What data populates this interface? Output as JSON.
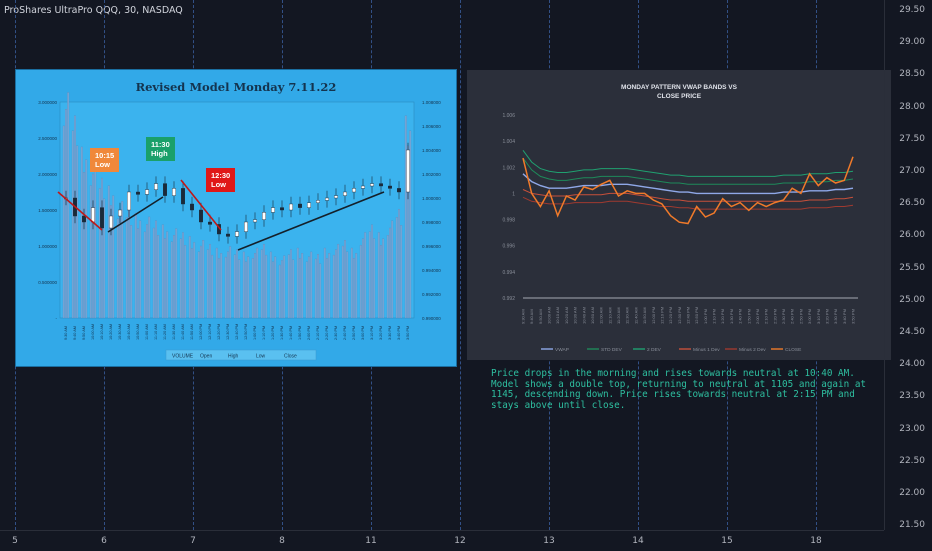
{
  "header": {
    "title": "ProShares UltraPro QQQ, 30, NASDAQ"
  },
  "price_axis": [
    "29.50",
    "29.00",
    "28.50",
    "28.00",
    "27.50",
    "27.00",
    "26.50",
    "26.00",
    "25.50",
    "25.00",
    "24.50",
    "24.00",
    "23.50",
    "23.00",
    "22.50",
    "22.00",
    "21.50"
  ],
  "time_axis": [
    "5",
    "6",
    "7",
    "8",
    "11",
    "12",
    "13",
    "14",
    "15",
    "18"
  ],
  "left_panel": {
    "title": "Revised Model Monday 7.11.22",
    "left_axis": [
      "3.000000",
      "2.500000",
      "2.000000",
      "1.500000",
      "1.000000",
      "0.500000",
      "-"
    ],
    "right_axis": [
      "1.008000",
      "1.006000",
      "1.004000",
      "1.002000",
      "1.000000",
      "0.998000",
      "0.996000",
      "0.994000",
      "0.992000",
      "0.990000"
    ],
    "x_labels": [
      "9:30 AM",
      "9:40 AM",
      "9:50 AM",
      "10:00 AM",
      "10:10 AM",
      "10:20 AM",
      "10:30 AM",
      "10:40 AM",
      "10:50 AM",
      "11:00 AM",
      "11:10 AM",
      "11:20 AM",
      "11:30 AM",
      "11:40 AM",
      "11:50 AM",
      "12:00 PM",
      "12:10 PM",
      "12:20 PM",
      "12:30 PM",
      "12:40 PM",
      "12:50 PM",
      "1:00 PM",
      "1:10 PM",
      "1:20 PM",
      "1:30 PM",
      "1:40 PM",
      "1:50 PM",
      "2:00 PM",
      "2:10 PM",
      "2:20 PM",
      "2:30 PM",
      "2:40 PM",
      "2:50 PM",
      "3:00 PM",
      "3:10 PM",
      "3:20 PM",
      "3:30 PM",
      "3:40 PM",
      "3:50 PM"
    ],
    "legend": [
      "VOLUME",
      "Open",
      "High",
      "Low",
      "Close"
    ],
    "annotations": [
      {
        "line1": "10:15",
        "line2": "Low",
        "color": "#f0883a"
      },
      {
        "line1": "11:30",
        "line2": "High",
        "color": "#1aa06a"
      },
      {
        "line1": "12:30",
        "line2": "Low",
        "color": "#e01818"
      }
    ]
  },
  "right_panel": {
    "title_line1": "MONDAY PATTERN VWAP BANDS VS",
    "title_line2": "CLOSE PRICE",
    "y_axis": [
      "1.006",
      "1.004",
      "1.002",
      "1",
      "0.998",
      "0.996",
      "0.994",
      "0.992"
    ],
    "x_labels": [
      "9:30 AM",
      "9:40 AM",
      "9:50 AM",
      "10:00 AM",
      "10:10 AM",
      "10:20 AM",
      "10:30 AM",
      "10:40 AM",
      "10:50 AM",
      "11:00 AM",
      "11:10 AM",
      "11:20 AM",
      "11:30 AM",
      "11:40 AM",
      "11:50 AM",
      "12:00 PM",
      "12:10 PM",
      "12:20 PM",
      "12:30 PM",
      "12:40 PM",
      "12:50 PM",
      "1:00 PM",
      "1:10 PM",
      "1:20 PM",
      "1:30 PM",
      "1:40 PM",
      "1:50 PM",
      "2:00 PM",
      "2:10 PM",
      "2:20 PM",
      "2:30 PM",
      "2:40 PM",
      "2:50 PM",
      "3:00 PM",
      "3:10 PM",
      "3:20 PM",
      "3:30 PM",
      "3:40 PM",
      "3:50 PM"
    ],
    "legend": [
      {
        "label": "VWAP",
        "color": "#8fa8e8"
      },
      {
        "label": "STD DEV",
        "color": "#1e8a5a"
      },
      {
        "label": "2 DEV",
        "color": "#20a070"
      },
      {
        "label": "Minus 1 Dev",
        "color": "#c8503a"
      },
      {
        "label": "Minus 2 Dev",
        "color": "#a03a30"
      },
      {
        "label": "CLOSE",
        "color": "#f07a2a"
      }
    ]
  },
  "description": "Price drops in the morning and rises towards neutral at 10:40 AM.  Model shows a double top, returning to neutral at 1105 and again at 1145, descending down.  Price rises towards neutral at 2:15 PM and stays above until close.",
  "chart_data": [
    {
      "type": "line",
      "title": "MONDAY PATTERN VWAP BANDS VS CLOSE PRICE",
      "categories": [
        "9:30 AM",
        "9:40 AM",
        "9:50 AM",
        "10:00 AM",
        "10:10 AM",
        "10:20 AM",
        "10:30 AM",
        "10:40 AM",
        "10:50 AM",
        "11:00 AM",
        "11:10 AM",
        "11:20 AM",
        "11:30 AM",
        "11:40 AM",
        "11:50 AM",
        "12:00 PM",
        "12:10 PM",
        "12:20 PM",
        "12:30 PM",
        "12:40 PM",
        "12:50 PM",
        "1:00 PM",
        "1:10 PM",
        "1:20 PM",
        "1:30 PM",
        "1:40 PM",
        "1:50 PM",
        "2:00 PM",
        "2:10 PM",
        "2:20 PM",
        "2:30 PM",
        "2:40 PM",
        "2:50 PM",
        "3:00 PM",
        "3:10 PM",
        "3:20 PM",
        "3:30 PM",
        "3:40 PM",
        "3:50 PM"
      ],
      "ylim": [
        0.992,
        1.006
      ],
      "series": [
        {
          "name": "VWAP",
          "values": [
            1.0015,
            1.0009,
            1.0006,
            1.0004,
            1.0004,
            1.0004,
            1.0005,
            1.0006,
            1.0006,
            1.0006,
            1.0007,
            1.0007,
            1.0007,
            1.0006,
            1.0005,
            1.0004,
            1.0003,
            1.0002,
            1.0001,
            1.0001,
            1.0,
            1.0,
            1.0,
            1.0,
            1.0,
            1.0,
            1.0,
            1.0,
            1.0,
            1.0,
            1.0001,
            1.0001,
            1.0001,
            1.0002,
            1.0002,
            1.0002,
            1.0003,
            1.0003,
            1.0004
          ]
        },
        {
          "name": "STD DEV",
          "values": [
            1.0027,
            1.0018,
            1.0013,
            1.0011,
            1.001,
            1.001,
            1.0011,
            1.0012,
            1.0012,
            1.0013,
            1.0013,
            1.0013,
            1.0013,
            1.0012,
            1.0011,
            1.001,
            1.0009,
            1.0008,
            1.0008,
            1.0007,
            1.0007,
            1.0007,
            1.0007,
            1.0007,
            1.0007,
            1.0007,
            1.0007,
            1.0007,
            1.0007,
            1.0007,
            1.0008,
            1.0008,
            1.0008,
            1.0009,
            1.0009,
            1.0009,
            1.001,
            1.001,
            1.0011
          ]
        },
        {
          "name": "2 DEV",
          "values": [
            1.0033,
            1.0024,
            1.0019,
            1.0017,
            1.0016,
            1.0016,
            1.0017,
            1.0018,
            1.0018,
            1.0019,
            1.0019,
            1.0019,
            1.0019,
            1.0018,
            1.0017,
            1.0016,
            1.0015,
            1.0014,
            1.0014,
            1.0013,
            1.0013,
            1.0013,
            1.0013,
            1.0013,
            1.0013,
            1.0013,
            1.0013,
            1.0013,
            1.0013,
            1.0013,
            1.0014,
            1.0014,
            1.0014,
            1.0015,
            1.0015,
            1.0015,
            1.0016,
            1.0016,
            1.0017
          ]
        },
        {
          "name": "Minus 1 Dev",
          "values": [
            1.0003,
            1.0,
            0.9999,
            0.9998,
            0.9998,
            0.9998,
            0.9999,
            0.9999,
            0.9999,
            0.9999,
            1.0,
            1.0,
            1.0,
            0.9999,
            0.9998,
            0.9997,
            0.9996,
            0.9995,
            0.9995,
            0.9994,
            0.9994,
            0.9994,
            0.9994,
            0.9994,
            0.9994,
            0.9994,
            0.9994,
            0.9994,
            0.9994,
            0.9994,
            0.9994,
            0.9994,
            0.9994,
            0.9995,
            0.9995,
            0.9995,
            0.9996,
            0.9996,
            0.9997
          ]
        },
        {
          "name": "Minus 2 Dev",
          "values": [
            0.9997,
            0.9994,
            0.9993,
            0.9992,
            0.9992,
            0.9992,
            0.9993,
            0.9993,
            0.9993,
            0.9993,
            0.9994,
            0.9994,
            0.9994,
            0.9993,
            0.9992,
            0.9991,
            0.999,
            0.999,
            0.9989,
            0.9989,
            0.9988,
            0.9988,
            0.9988,
            0.9988,
            0.9988,
            0.9988,
            0.9988,
            0.9988,
            0.9988,
            0.9988,
            0.9988,
            0.9988,
            0.9988,
            0.9989,
            0.9989,
            0.9989,
            0.999,
            0.999,
            0.9991
          ]
        },
        {
          "name": "CLOSE",
          "values": [
            1.0027,
            1.0,
            0.999,
            1.0002,
            0.9983,
            0.9998,
            0.9995,
            1.0005,
            1.0003,
            1.0007,
            1.001,
            0.9998,
            1.0002,
            1.0,
            1.0,
            0.9995,
            0.9992,
            0.9983,
            0.9978,
            0.9977,
            0.999,
            0.9982,
            0.9985,
            0.9996,
            0.999,
            0.9993,
            0.9987,
            0.9993,
            0.999,
            0.9993,
            0.9995,
            1.0004,
            1.0,
            1.0015,
            1.0006,
            1.0012,
            1.0008,
            1.001,
            1.0028
          ]
        }
      ]
    }
  ]
}
